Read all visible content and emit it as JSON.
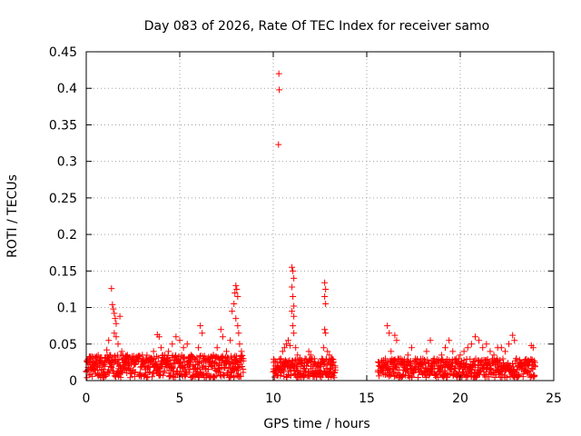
{
  "chart_data": {
    "type": "scatter",
    "title": "Day 083 of 2026, Rate Of TEC Index for receiver samo",
    "xlabel": "GPS time / hours",
    "ylabel": "ROTI / TECUs",
    "xlim": [
      0,
      25
    ],
    "ylim": [
      0,
      0.45
    ],
    "xticks": [
      0,
      5,
      10,
      15,
      20,
      25
    ],
    "xtick_labels": [
      "0",
      "5",
      "10",
      "15",
      "20",
      "25"
    ],
    "yticks": [
      0,
      0.05,
      0.1,
      0.15,
      0.2,
      0.25,
      0.3,
      0.35,
      0.4,
      0.45
    ],
    "ytick_labels": [
      "0",
      "0.05",
      "0.1",
      "0.15",
      "0.2",
      "0.25",
      "0.3",
      "0.35",
      "0.4",
      "0.45"
    ],
    "grid": true,
    "marker": "+",
    "color": "#ff0000",
    "series": [
      {
        "name": "ROTI",
        "points": [
          [
            0.0,
            0.012
          ],
          [
            0.1,
            0.018
          ],
          [
            0.2,
            0.022
          ],
          [
            0.3,
            0.015
          ],
          [
            0.4,
            0.025
          ],
          [
            0.5,
            0.01
          ],
          [
            0.6,
            0.02
          ],
          [
            0.7,
            0.028
          ],
          [
            0.8,
            0.014
          ],
          [
            0.9,
            0.021
          ],
          [
            1.0,
            0.03
          ],
          [
            1.1,
            0.042
          ],
          [
            1.2,
            0.055
          ],
          [
            1.3,
            0.035
          ],
          [
            1.35,
            0.126
          ],
          [
            1.4,
            0.104
          ],
          [
            1.45,
            0.098
          ],
          [
            1.5,
            0.092
          ],
          [
            1.55,
            0.085
          ],
          [
            1.6,
            0.078
          ],
          [
            1.5,
            0.065
          ],
          [
            1.6,
            0.06
          ],
          [
            1.7,
            0.05
          ],
          [
            1.8,
            0.088
          ],
          [
            1.9,
            0.04
          ],
          [
            2.0,
            0.03
          ],
          [
            2.1,
            0.025
          ],
          [
            2.2,
            0.035
          ],
          [
            2.4,
            0.028
          ],
          [
            2.6,
            0.022
          ],
          [
            2.8,
            0.03
          ],
          [
            3.0,
            0.035
          ],
          [
            3.2,
            0.025
          ],
          [
            3.4,
            0.03
          ],
          [
            3.6,
            0.04
          ],
          [
            3.8,
            0.063
          ],
          [
            3.9,
            0.06
          ],
          [
            4.0,
            0.045
          ],
          [
            4.2,
            0.035
          ],
          [
            4.4,
            0.04
          ],
          [
            4.6,
            0.05
          ],
          [
            4.8,
            0.06
          ],
          [
            5.0,
            0.055
          ],
          [
            5.2,
            0.045
          ],
          [
            5.4,
            0.05
          ],
          [
            5.6,
            0.035
          ],
          [
            5.8,
            0.03
          ],
          [
            6.0,
            0.045
          ],
          [
            6.1,
            0.075
          ],
          [
            6.2,
            0.065
          ],
          [
            6.4,
            0.03
          ],
          [
            6.6,
            0.025
          ],
          [
            6.8,
            0.035
          ],
          [
            7.0,
            0.045
          ],
          [
            7.2,
            0.07
          ],
          [
            7.3,
            0.06
          ],
          [
            7.5,
            0.04
          ],
          [
            7.7,
            0.055
          ],
          [
            7.8,
            0.095
          ],
          [
            7.9,
            0.105
          ],
          [
            7.95,
            0.12
          ],
          [
            8.0,
            0.13
          ],
          [
            8.05,
            0.125
          ],
          [
            8.1,
            0.115
          ],
          [
            8.0,
            0.085
          ],
          [
            8.1,
            0.075
          ],
          [
            8.15,
            0.065
          ],
          [
            8.2,
            0.05
          ],
          [
            8.3,
            0.04
          ],
          [
            8.4,
            0.03
          ],
          [
            10.0,
            0.012
          ],
          [
            10.1,
            0.02
          ],
          [
            10.2,
            0.025
          ],
          [
            10.3,
            0.42
          ],
          [
            10.32,
            0.398
          ],
          [
            10.28,
            0.323
          ],
          [
            10.4,
            0.03
          ],
          [
            10.5,
            0.04
          ],
          [
            10.6,
            0.045
          ],
          [
            10.7,
            0.05
          ],
          [
            10.8,
            0.055
          ],
          [
            10.9,
            0.048
          ],
          [
            11.0,
            0.155
          ],
          [
            11.05,
            0.15
          ],
          [
            11.1,
            0.14
          ],
          [
            11.0,
            0.128
          ],
          [
            11.05,
            0.115
          ],
          [
            11.1,
            0.102
          ],
          [
            11.0,
            0.095
          ],
          [
            11.1,
            0.088
          ],
          [
            11.05,
            0.075
          ],
          [
            11.1,
            0.065
          ],
          [
            11.2,
            0.045
          ],
          [
            11.3,
            0.035
          ],
          [
            11.5,
            0.025
          ],
          [
            11.7,
            0.03
          ],
          [
            11.9,
            0.04
          ],
          [
            12.0,
            0.035
          ],
          [
            12.2,
            0.03
          ],
          [
            12.4,
            0.025
          ],
          [
            12.6,
            0.03
          ],
          [
            12.7,
            0.045
          ],
          [
            12.75,
            0.134
          ],
          [
            12.8,
            0.125
          ],
          [
            12.75,
            0.115
          ],
          [
            12.8,
            0.105
          ],
          [
            12.75,
            0.07
          ],
          [
            12.8,
            0.065
          ],
          [
            12.9,
            0.04
          ],
          [
            13.0,
            0.035
          ],
          [
            13.1,
            0.03
          ],
          [
            13.2,
            0.025
          ],
          [
            13.3,
            0.02
          ],
          [
            15.6,
            0.012
          ],
          [
            15.8,
            0.018
          ],
          [
            16.0,
            0.03
          ],
          [
            16.1,
            0.075
          ],
          [
            16.2,
            0.065
          ],
          [
            16.3,
            0.04
          ],
          [
            16.5,
            0.062
          ],
          [
            16.6,
            0.055
          ],
          [
            16.8,
            0.03
          ],
          [
            17.0,
            0.025
          ],
          [
            17.2,
            0.035
          ],
          [
            17.4,
            0.045
          ],
          [
            17.6,
            0.03
          ],
          [
            17.8,
            0.025
          ],
          [
            18.0,
            0.03
          ],
          [
            18.2,
            0.04
          ],
          [
            18.4,
            0.055
          ],
          [
            18.6,
            0.03
          ],
          [
            18.8,
            0.025
          ],
          [
            19.0,
            0.035
          ],
          [
            19.2,
            0.045
          ],
          [
            19.4,
            0.055
          ],
          [
            19.6,
            0.04
          ],
          [
            19.8,
            0.03
          ],
          [
            20.0,
            0.035
          ],
          [
            20.2,
            0.04
          ],
          [
            20.4,
            0.045
          ],
          [
            20.6,
            0.05
          ],
          [
            20.8,
            0.06
          ],
          [
            21.0,
            0.055
          ],
          [
            21.2,
            0.045
          ],
          [
            21.4,
            0.05
          ],
          [
            21.6,
            0.04
          ],
          [
            21.8,
            0.035
          ],
          [
            22.0,
            0.045
          ],
          [
            22.2,
            0.045
          ],
          [
            22.4,
            0.04
          ],
          [
            22.6,
            0.05
          ],
          [
            22.8,
            0.062
          ],
          [
            22.9,
            0.055
          ],
          [
            23.0,
            0.03
          ],
          [
            23.6,
            0.02
          ],
          [
            23.8,
            0.048
          ],
          [
            23.9,
            0.045
          ],
          [
            24.0,
            0.02
          ]
        ],
        "dense_baseline": [
          {
            "x_start": 0.0,
            "x_end": 8.4,
            "y_min": 0.004,
            "y_max": 0.035
          },
          {
            "x_start": 10.0,
            "x_end": 13.3,
            "y_min": 0.004,
            "y_max": 0.03
          },
          {
            "x_start": 15.6,
            "x_end": 24.0,
            "y_min": 0.004,
            "y_max": 0.03
          }
        ]
      }
    ]
  }
}
